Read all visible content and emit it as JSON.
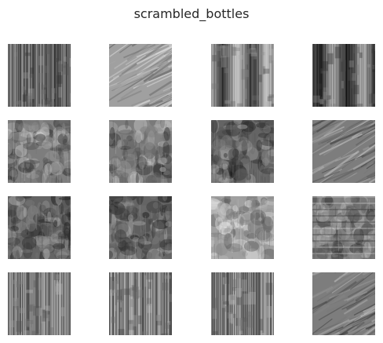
{
  "figure": {
    "title": "scrambled_bottles"
  },
  "grid": {
    "rows": 4,
    "cols": 4,
    "tiles": [
      {
        "pattern": "vertical-streaks",
        "shade": "medium-dark"
      },
      {
        "pattern": "diagonal-streaks",
        "shade": "light"
      },
      {
        "pattern": "vertical-bands",
        "shade": "high-contrast"
      },
      {
        "pattern": "vertical-bands",
        "shade": "dark-center"
      },
      {
        "pattern": "mottled",
        "shade": "medium"
      },
      {
        "pattern": "mottled",
        "shade": "medium"
      },
      {
        "pattern": "mottled",
        "shade": "medium-dark"
      },
      {
        "pattern": "diagonal-streaks",
        "shade": "medium"
      },
      {
        "pattern": "mottled",
        "shade": "medium-dark"
      },
      {
        "pattern": "mottled",
        "shade": "medium-dark"
      },
      {
        "pattern": "mottled",
        "shade": "light-top"
      },
      {
        "pattern": "checker-mottled",
        "shade": "high-contrast"
      },
      {
        "pattern": "vertical-streaks",
        "shade": "medium"
      },
      {
        "pattern": "vertical-streaks",
        "shade": "medium"
      },
      {
        "pattern": "vertical-streaks",
        "shade": "medium"
      },
      {
        "pattern": "diagonal-streaks",
        "shade": "medium"
      }
    ]
  },
  "colors": {
    "background": "#ffffff",
    "title": "#262626"
  }
}
